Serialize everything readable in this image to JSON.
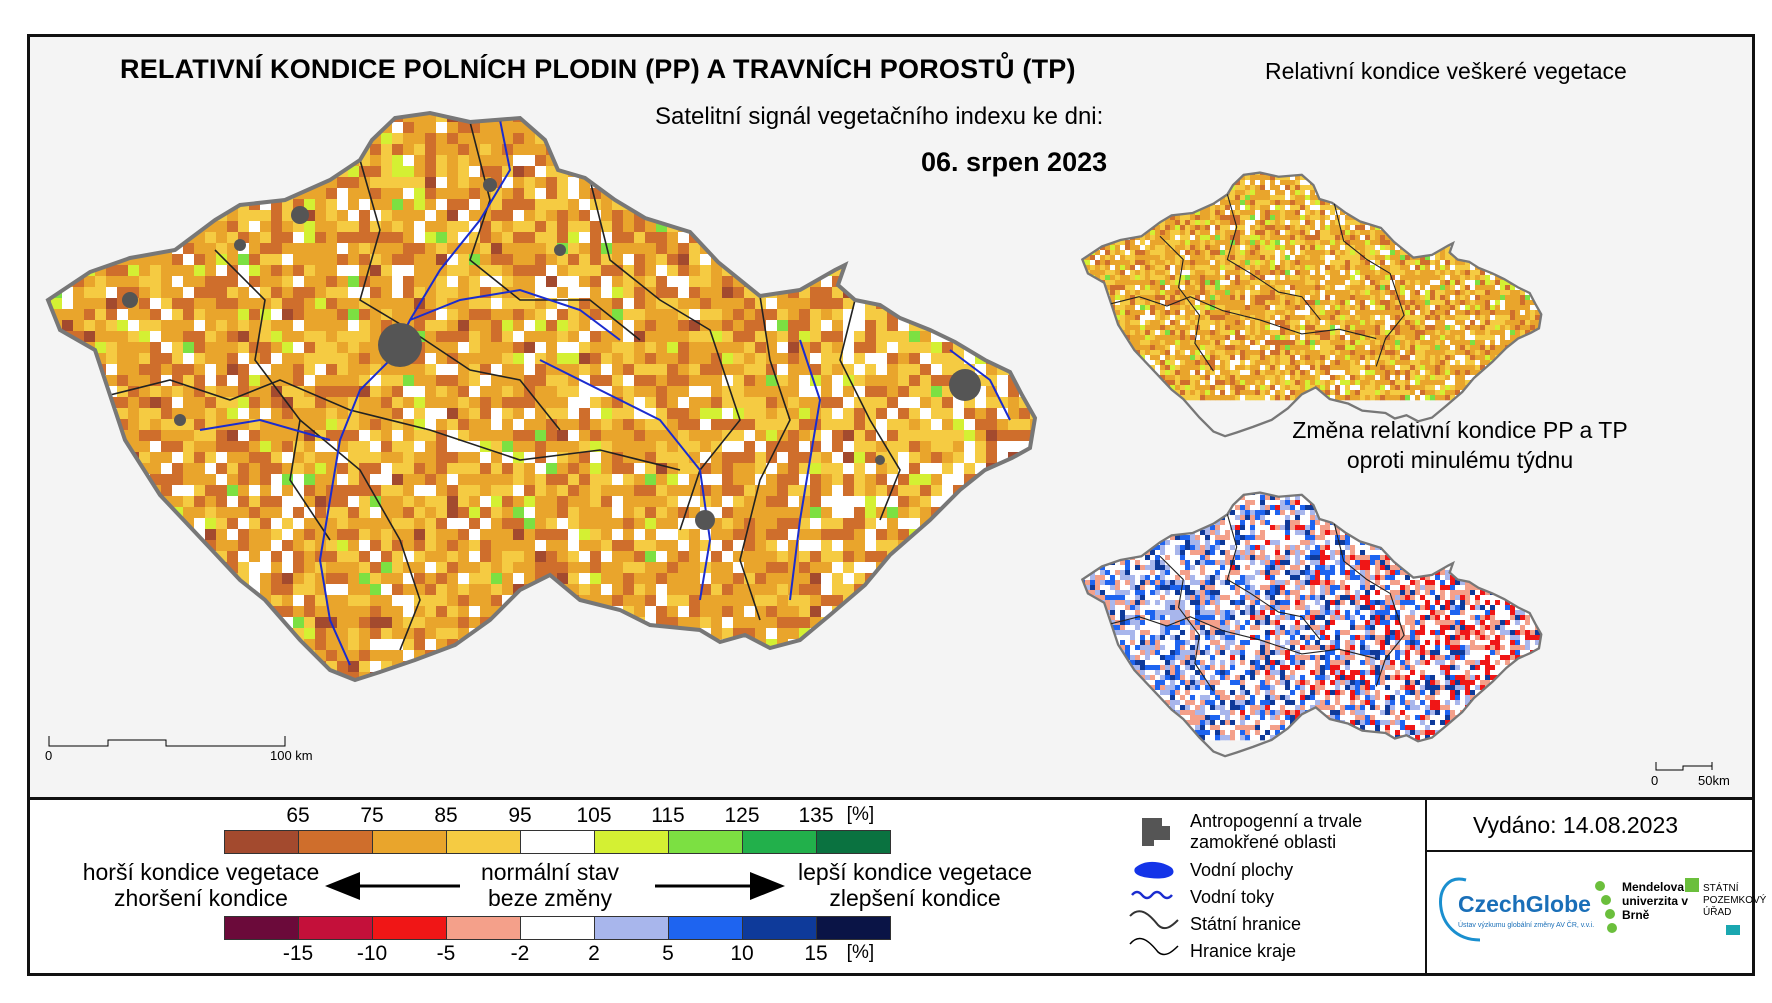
{
  "header": {
    "title": "RELATIVNÍ KONDICE POLNÍCH PLODIN (PP) A TRAVNÍCH POROSTŮ (TP)",
    "subtitle": "Satelitní signál vegetačního indexu ke dni:",
    "date": "06. srpen 2023"
  },
  "inset_top": {
    "title": "Relativní kondice veškeré vegetace"
  },
  "inset_bottom": {
    "title_line1": "Změna relativní kondice PP a TP",
    "title_line2": "oproti minulému týdnu"
  },
  "scale_main": {
    "zero": "0",
    "end": "100 km"
  },
  "scale_inset": {
    "zero": "0",
    "end": "50km"
  },
  "legend_condition": {
    "ticks": [
      "65",
      "75",
      "85",
      "95",
      "105",
      "115",
      "125",
      "135"
    ],
    "unit": "[%]",
    "colors": [
      "#a34a2e",
      "#cf6e2c",
      "#e9a52c",
      "#f5cb42",
      "#ffffff",
      "#d4f033",
      "#7ce042",
      "#22b04b",
      "#0a7240"
    ]
  },
  "legend_change": {
    "ticks": [
      "-15",
      "-10",
      "-5",
      "-2",
      "2",
      "5",
      "10",
      "15"
    ],
    "unit": "[%]",
    "colors": [
      "#6b0a3a",
      "#c4103a",
      "#f01616",
      "#f4a08a",
      "#ffffff",
      "#a8b6ec",
      "#1e64f0",
      "#0e3a9a",
      "#0a1446"
    ]
  },
  "legend_labels": {
    "worse_line1": "horší kondice vegetace",
    "worse_line2": "zhoršení kondice",
    "normal_line1": "normální stav",
    "normal_line2": "beze změny",
    "better_line1": "lepší kondice vegetace",
    "better_line2": "zlepšení kondice"
  },
  "map_legend": {
    "anthropogenic": "Antropogenní a trvale zamokřené oblasti",
    "water_bodies": "Vodní plochy",
    "water_courses": "Vodní toky",
    "state_border": "Státní hranice",
    "region_border": "Hranice kraje"
  },
  "issued": "Vydáno: 14.08.2023",
  "logos": {
    "czechglobe": "CzechGlobe",
    "czechglobe_sub": "Ústav výzkumu globální změny AV ČR, v.v.i.",
    "mendel": "Mendelova univerzita v Brně",
    "spu": "STÁTNÍ POZEMKOVÝ ÚŘAD"
  }
}
